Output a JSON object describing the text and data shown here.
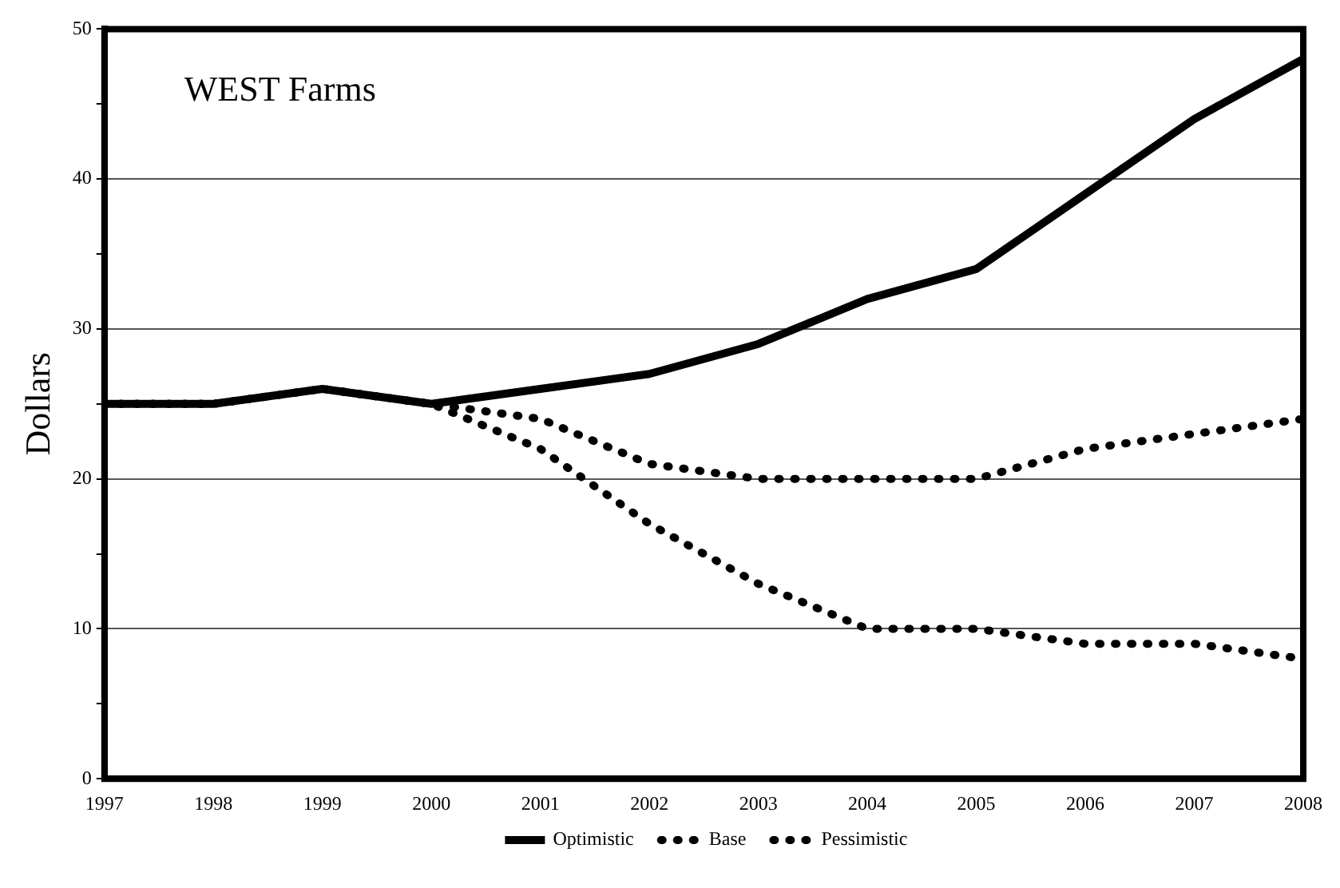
{
  "chart_data": {
    "type": "line",
    "title": "WEST Farms",
    "ylabel": "Dollars",
    "x": [
      1997,
      1998,
      1999,
      2000,
      2001,
      2002,
      2003,
      2004,
      2005,
      2006,
      2007,
      2008
    ],
    "xlim": [
      1997,
      2008
    ],
    "xticks": [
      1997,
      1998,
      1999,
      2000,
      2001,
      2002,
      2003,
      2004,
      2005,
      2006,
      2007,
      2008
    ],
    "ylim": [
      0,
      50
    ],
    "yticks": [
      0,
      {
        "value": 5,
        "label": null
      },
      10,
      {
        "value": 15,
        "label": null
      },
      20,
      {
        "value": 25,
        "label": null
      },
      30,
      {
        "value": 35,
        "label": null
      },
      40,
      {
        "value": 45,
        "label": null
      },
      50
    ],
    "grid": "y",
    "legend": "bottom",
    "marker": "none",
    "series": [
      {
        "name": "Optimistic",
        "color": "#000000",
        "line_style": "solid",
        "values": [
          25,
          25,
          26,
          25,
          26,
          27,
          29,
          32,
          34,
          39,
          44,
          48
        ]
      },
      {
        "name": "Base",
        "color": "#000000",
        "line_style": "dotted",
        "values": [
          25,
          25,
          26,
          25,
          24,
          21,
          20,
          20,
          20,
          22,
          23,
          24
        ]
      },
      {
        "name": "Pessimistic",
        "color": "#000000",
        "line_style": "dotted",
        "values": [
          25,
          25,
          26,
          25,
          22,
          17,
          13,
          10,
          10,
          9,
          9,
          8
        ]
      }
    ]
  }
}
